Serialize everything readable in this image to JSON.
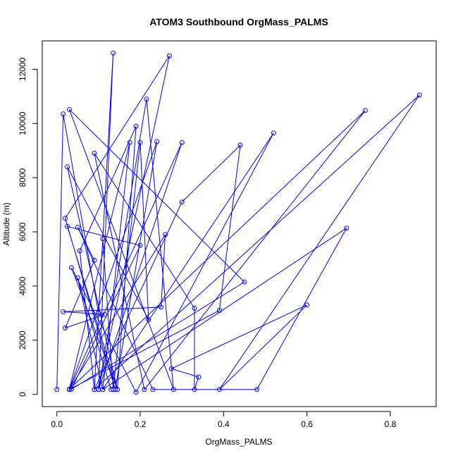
{
  "chart_data": {
    "type": "line",
    "title": "ATOM3 Southbound OrgMass_PALMS",
    "xlabel": "OrgMass_PALMS",
    "ylabel": "Altitude (m)",
    "xlim": [
      -0.035,
      0.91
    ],
    "ylim": [
      -450,
      13050
    ],
    "xticks": [
      0.0,
      0.2,
      0.4,
      0.6,
      0.8
    ],
    "xtick_labels": [
      "0.0",
      "0.2",
      "0.4",
      "0.6",
      "0.8"
    ],
    "yticks": [
      0,
      2000,
      4000,
      6000,
      8000,
      10000,
      12000
    ],
    "ytick_labels": [
      "0",
      "2000",
      "4000",
      "6000",
      "8000",
      "10000",
      "12000"
    ],
    "grid": false,
    "legend": "none",
    "color": "#0000ff",
    "series": [
      {
        "points": [
          [
            0.0,
            180
          ],
          [
            0.015,
            10350
          ],
          [
            0.1,
            3000
          ],
          [
            0.135,
            12600
          ],
          [
            0.1,
            190
          ],
          [
            0.27,
            12500
          ],
          [
            0.02,
            6500
          ],
          [
            0.14,
            180
          ],
          [
            0.24,
            9330
          ],
          [
            0.03,
            180
          ],
          [
            0.3,
            9300
          ],
          [
            0.1,
            180
          ],
          [
            0.215,
            10900
          ],
          [
            0.28,
            180
          ],
          [
            0.03,
            10520
          ],
          [
            0.45,
            4150
          ],
          [
            0.035,
            190
          ],
          [
            0.2,
            5500
          ],
          [
            0.025,
            6200
          ],
          [
            0.145,
            180
          ],
          [
            0.035,
            4680
          ],
          [
            0.19,
            80
          ],
          [
            0.52,
            9650
          ],
          [
            0.11,
            180
          ],
          [
            0.175,
            9300
          ],
          [
            0.03,
            190
          ],
          [
            0.74,
            10480
          ],
          [
            0.21,
            180
          ],
          [
            0.09,
            8900
          ],
          [
            0.33,
            3180
          ],
          [
            0.33,
            180
          ],
          [
            0.34,
            640
          ],
          [
            0.275,
            950
          ],
          [
            0.6,
            3300
          ],
          [
            0.39,
            180
          ],
          [
            0.87,
            11050
          ],
          [
            0.09,
            180
          ],
          [
            0.11,
            5750
          ],
          [
            0.135,
            180
          ],
          [
            0.2,
            9300
          ],
          [
            0.22,
            2760
          ],
          [
            0.025,
            8400
          ],
          [
            0.145,
            180
          ],
          [
            0.19,
            9900
          ],
          [
            0.055,
            5300
          ],
          [
            0.09,
            180
          ],
          [
            0.3,
            7100
          ],
          [
            0.44,
            9200
          ],
          [
            0.39,
            3100
          ],
          [
            0.03,
            180
          ],
          [
            0.26,
            5900
          ],
          [
            0.25,
            3220
          ],
          [
            0.015,
            3050
          ],
          [
            0.115,
            2950
          ],
          [
            0.02,
            2450
          ],
          [
            0.09,
            4950
          ],
          [
            0.05,
            6170
          ],
          [
            0.23,
            180
          ],
          [
            0.48,
            180
          ],
          [
            0.695,
            6140
          ],
          [
            0.11,
            180
          ],
          [
            0.05,
            4300
          ],
          [
            0.13,
            180
          ]
        ]
      }
    ]
  }
}
